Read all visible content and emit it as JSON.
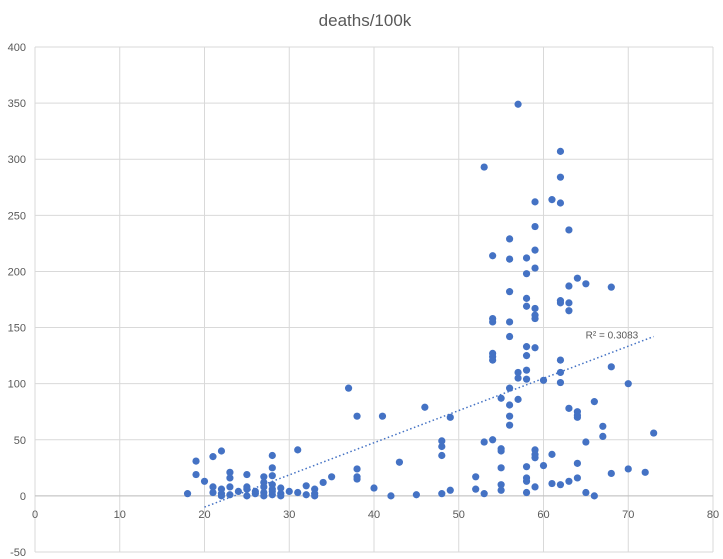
{
  "chart_data": {
    "type": "scatter",
    "title": "deaths/100k",
    "xlabel": "",
    "ylabel": "",
    "xlim": [
      0,
      80
    ],
    "ylim": [
      -50,
      400
    ],
    "x_ticks": [
      0,
      10,
      20,
      30,
      40,
      50,
      60,
      70,
      80
    ],
    "y_ticks": [
      -50,
      0,
      50,
      100,
      150,
      200,
      250,
      300,
      350,
      400
    ],
    "grid": true,
    "legend": "none",
    "marker_color": "#4472c4",
    "trendline": {
      "type": "linear",
      "from": [
        20,
        -10
      ],
      "to": [
        73,
        142
      ],
      "r2_label": "R² = 0.3083",
      "color": "#4472c4"
    },
    "points": [
      [
        18,
        2
      ],
      [
        19,
        31
      ],
      [
        19,
        19
      ],
      [
        20,
        13
      ],
      [
        21,
        35
      ],
      [
        21,
        8
      ],
      [
        21,
        3
      ],
      [
        22,
        40
      ],
      [
        22,
        6
      ],
      [
        22,
        2
      ],
      [
        22,
        0
      ],
      [
        23,
        21
      ],
      [
        23,
        16
      ],
      [
        23,
        8
      ],
      [
        23,
        1
      ],
      [
        24,
        4
      ],
      [
        25,
        19
      ],
      [
        25,
        8
      ],
      [
        25,
        6
      ],
      [
        25,
        0
      ],
      [
        26,
        4
      ],
      [
        26,
        2
      ],
      [
        27,
        17
      ],
      [
        27,
        12
      ],
      [
        27,
        8
      ],
      [
        27,
        3
      ],
      [
        27,
        0
      ],
      [
        28,
        36
      ],
      [
        28,
        25
      ],
      [
        28,
        18
      ],
      [
        28,
        10
      ],
      [
        28,
        6
      ],
      [
        28,
        4
      ],
      [
        28,
        1
      ],
      [
        29,
        7
      ],
      [
        29,
        2
      ],
      [
        29,
        0
      ],
      [
        30,
        4
      ],
      [
        31,
        41
      ],
      [
        31,
        3
      ],
      [
        32,
        9
      ],
      [
        32,
        1
      ],
      [
        33,
        6
      ],
      [
        33,
        2
      ],
      [
        33,
        0
      ],
      [
        34,
        12
      ],
      [
        35,
        17
      ],
      [
        37,
        96
      ],
      [
        38,
        71
      ],
      [
        38,
        24
      ],
      [
        38,
        17
      ],
      [
        38,
        15
      ],
      [
        40,
        7
      ],
      [
        41,
        71
      ],
      [
        42,
        0
      ],
      [
        43,
        30
      ],
      [
        45,
        1
      ],
      [
        46,
        79
      ],
      [
        48,
        49
      ],
      [
        48,
        44
      ],
      [
        48,
        36
      ],
      [
        48,
        2
      ],
      [
        49,
        70
      ],
      [
        49,
        5
      ],
      [
        52,
        17
      ],
      [
        52,
        6
      ],
      [
        53,
        293
      ],
      [
        53,
        48
      ],
      [
        53,
        2
      ],
      [
        54,
        214
      ],
      [
        54,
        158
      ],
      [
        54,
        155
      ],
      [
        54,
        127
      ],
      [
        54,
        124
      ],
      [
        54,
        121
      ],
      [
        54,
        50
      ],
      [
        55,
        87
      ],
      [
        55,
        42
      ],
      [
        55,
        40
      ],
      [
        55,
        25
      ],
      [
        55,
        10
      ],
      [
        55,
        5
      ],
      [
        56,
        229
      ],
      [
        56,
        211
      ],
      [
        56,
        182
      ],
      [
        56,
        155
      ],
      [
        56,
        142
      ],
      [
        56,
        96
      ],
      [
        56,
        81
      ],
      [
        56,
        71
      ],
      [
        56,
        63
      ],
      [
        57,
        349
      ],
      [
        57,
        110
      ],
      [
        57,
        105
      ],
      [
        57,
        86
      ],
      [
        58,
        212
      ],
      [
        58,
        198
      ],
      [
        58,
        176
      ],
      [
        58,
        169
      ],
      [
        58,
        133
      ],
      [
        58,
        125
      ],
      [
        58,
        112
      ],
      [
        58,
        104
      ],
      [
        58,
        26
      ],
      [
        58,
        16
      ],
      [
        58,
        13
      ],
      [
        58,
        3
      ],
      [
        59,
        262
      ],
      [
        59,
        240
      ],
      [
        59,
        219
      ],
      [
        59,
        203
      ],
      [
        59,
        167
      ],
      [
        59,
        161
      ],
      [
        59,
        158
      ],
      [
        59,
        132
      ],
      [
        59,
        41
      ],
      [
        59,
        37
      ],
      [
        59,
        34
      ],
      [
        59,
        8
      ],
      [
        60,
        103
      ],
      [
        60,
        27
      ],
      [
        61,
        264
      ],
      [
        61,
        37
      ],
      [
        61,
        11
      ],
      [
        62,
        307
      ],
      [
        62,
        284
      ],
      [
        62,
        261
      ],
      [
        62,
        174
      ],
      [
        62,
        172
      ],
      [
        62,
        121
      ],
      [
        62,
        110
      ],
      [
        62,
        101
      ],
      [
        62,
        10
      ],
      [
        63,
        237
      ],
      [
        63,
        187
      ],
      [
        63,
        172
      ],
      [
        63,
        165
      ],
      [
        63,
        78
      ],
      [
        63,
        13
      ],
      [
        64,
        194
      ],
      [
        64,
        75
      ],
      [
        64,
        72
      ],
      [
        64,
        70
      ],
      [
        64,
        29
      ],
      [
        64,
        16
      ],
      [
        65,
        189
      ],
      [
        65,
        48
      ],
      [
        65,
        3
      ],
      [
        66,
        84
      ],
      [
        66,
        0
      ],
      [
        67,
        62
      ],
      [
        67,
        53
      ],
      [
        68,
        186
      ],
      [
        68,
        115
      ],
      [
        68,
        20
      ],
      [
        70,
        100
      ],
      [
        70,
        24
      ],
      [
        72,
        21
      ],
      [
        73,
        56
      ]
    ]
  }
}
